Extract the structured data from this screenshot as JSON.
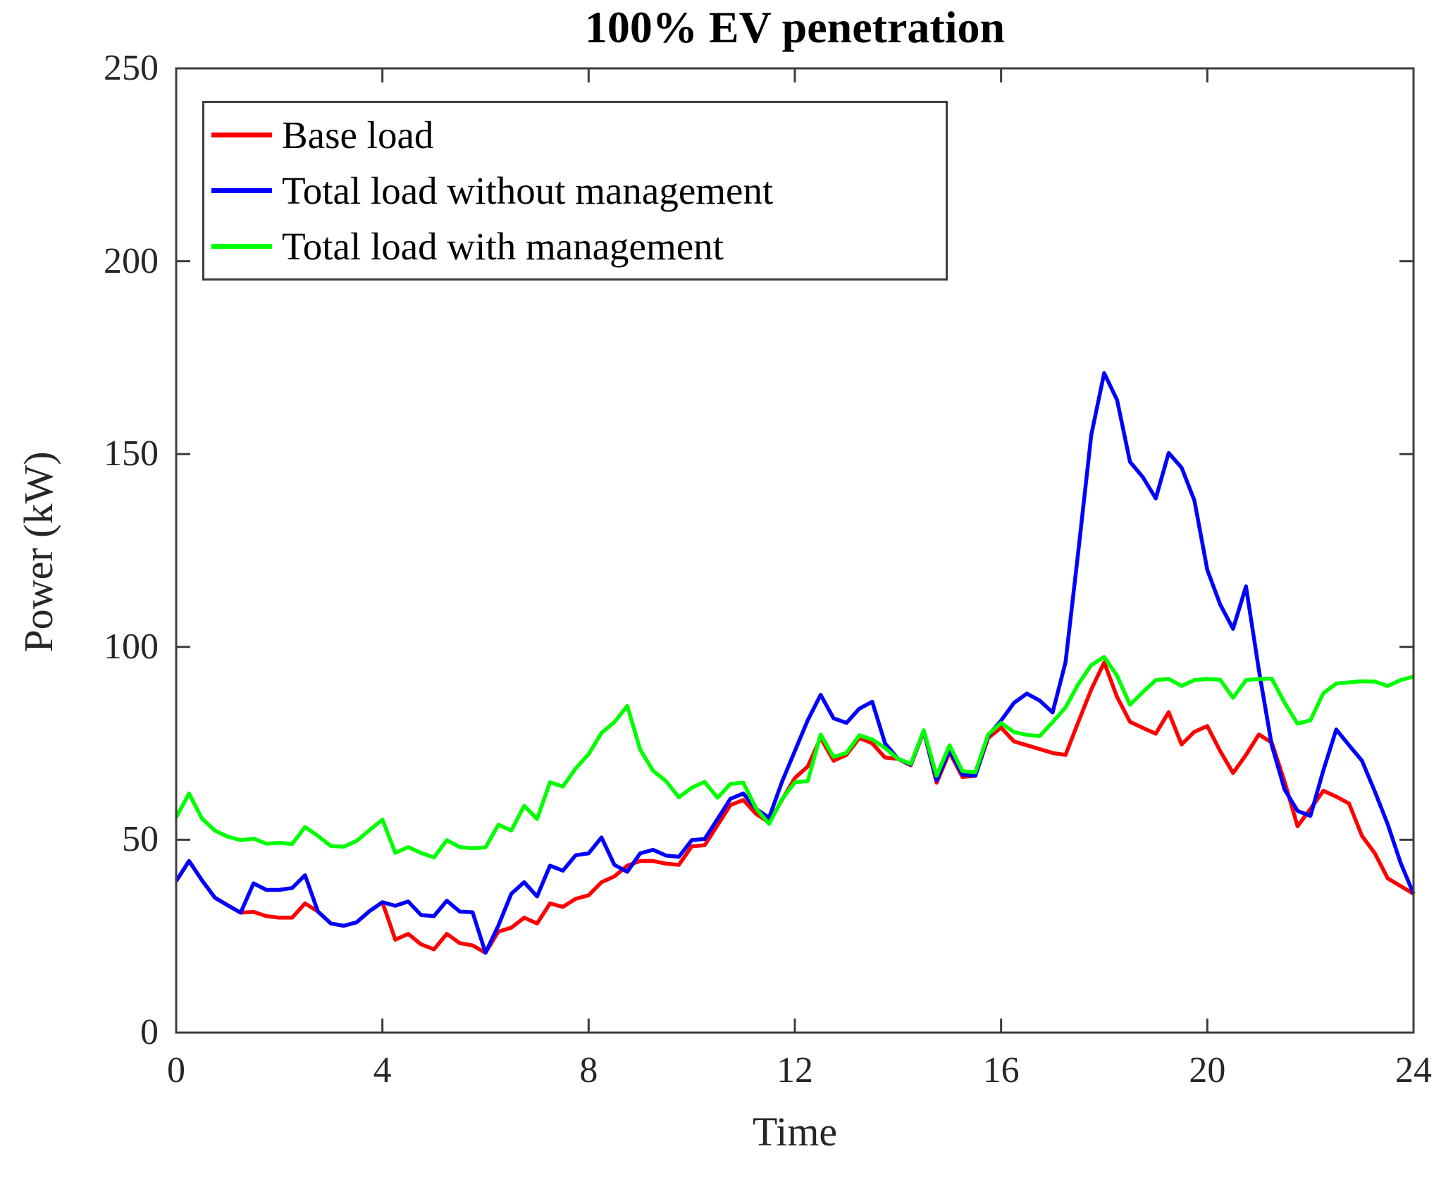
{
  "figure": {
    "title": "100% EV penetration",
    "xlabel": "Time",
    "ylabel": "Power (kW)"
  },
  "axes": {
    "x": {
      "min": 0,
      "max": 24,
      "ticks": [
        "0",
        "4",
        "8",
        "12",
        "16",
        "20",
        "24"
      ],
      "tick_values": [
        0,
        4,
        8,
        12,
        16,
        20,
        24
      ]
    },
    "y": {
      "min": 0,
      "max": 250,
      "ticks": [
        "0",
        "50",
        "100",
        "150",
        "200",
        "250"
      ],
      "tick_values": [
        0,
        50,
        100,
        150,
        200,
        250
      ]
    },
    "axis_color": "#3c3c3c",
    "grid": false
  },
  "legend": {
    "position": "northwest-inside"
  },
  "chart_data": {
    "type": "line",
    "title": "100% EV penetration",
    "xlabel": "Time",
    "ylabel": "Power (kW)",
    "xlim": [
      0,
      24
    ],
    "ylim": [
      0,
      250
    ],
    "x_start": 0,
    "x_step": 0.25,
    "series": [
      {
        "name": "Base load",
        "color": "#ff0000",
        "values": [
          39.3,
          44.5,
          39.5,
          35.0,
          33.0,
          31.1,
          31.3,
          30.2,
          29.8,
          29.8,
          33.5,
          31.4,
          28.3,
          27.7,
          28.6,
          31.5,
          33.8,
          24.1,
          25.6,
          22.9,
          21.6,
          25.6,
          23.2,
          22.6,
          20.7,
          26.2,
          27.2,
          29.8,
          28.3,
          33.5,
          32.6,
          34.7,
          35.6,
          39.0,
          40.5,
          43.3,
          44.5,
          44.5,
          43.8,
          43.5,
          48.3,
          48.6,
          53.8,
          59.0,
          60.3,
          56.7,
          54.5,
          60.3,
          66.0,
          69.0,
          76.4,
          70.5,
          72.0,
          76.4,
          75.0,
          71.3,
          71.0,
          69.3,
          78.1,
          64.8,
          72.7,
          66.3,
          66.6,
          76.4,
          79.1,
          75.5,
          74.5,
          73.5,
          72.5,
          72.0,
          80.6,
          89.0,
          96.0,
          87.0,
          80.6,
          79.0,
          77.5,
          83.1,
          74.7,
          78.0,
          79.5,
          73.0,
          67.3,
          72.0,
          77.3,
          75.2,
          65.0,
          53.5,
          58.0,
          62.7,
          61.2,
          59.4,
          51.0,
          46.5,
          40.0,
          38.0,
          36.0
        ]
      },
      {
        "name": "Total load without management",
        "color": "#0000ff",
        "values": [
          39.3,
          44.5,
          39.5,
          35.0,
          33.0,
          31.1,
          38.7,
          37.0,
          37.0,
          37.5,
          40.8,
          31.4,
          28.3,
          27.7,
          28.6,
          31.5,
          33.8,
          32.9,
          34.0,
          30.5,
          30.2,
          34.2,
          31.4,
          31.2,
          20.7,
          27.8,
          36.0,
          39.0,
          35.3,
          43.3,
          42.0,
          46.0,
          46.5,
          50.6,
          43.5,
          41.7,
          46.5,
          47.4,
          45.9,
          45.6,
          49.9,
          50.2,
          55.4,
          60.6,
          62.0,
          58.0,
          55.7,
          65.0,
          73.0,
          81.0,
          87.6,
          81.5,
          80.3,
          84.0,
          85.8,
          75.0,
          71.0,
          69.5,
          78.3,
          65.4,
          73.3,
          66.9,
          66.6,
          77.0,
          80.9,
          85.5,
          87.9,
          86.1,
          83.0,
          96.0,
          125.0,
          155.0,
          171.0,
          164.0,
          148.0,
          144.0,
          138.5,
          150.3,
          146.5,
          138.0,
          120.0,
          111.0,
          104.7,
          115.7,
          94.0,
          74.5,
          63.0,
          57.5,
          56.2,
          68.0,
          78.6,
          74.5,
          70.5,
          62.5,
          54.0,
          44.0,
          36.0
        ]
      },
      {
        "name": "Total load with management",
        "color": "#00ff00",
        "values": [
          55.8,
          62.0,
          55.5,
          52.4,
          50.8,
          49.9,
          50.3,
          49.0,
          49.2,
          48.9,
          53.3,
          51.0,
          48.4,
          48.2,
          49.7,
          52.5,
          55.2,
          46.6,
          48.1,
          46.6,
          45.4,
          49.9,
          48.1,
          47.8,
          48.0,
          53.9,
          52.4,
          58.8,
          55.4,
          64.9,
          63.8,
          68.5,
          72.2,
          77.7,
          80.5,
          84.7,
          73.4,
          67.9,
          65.2,
          61.0,
          63.5,
          65.0,
          60.9,
          64.5,
          64.8,
          58.1,
          54.1,
          60.5,
          64.9,
          65.2,
          77.3,
          71.5,
          72.5,
          77.1,
          76.0,
          73.8,
          71.0,
          69.7,
          78.4,
          66.6,
          74.5,
          67.8,
          67.5,
          77.3,
          80.3,
          77.9,
          77.2,
          76.9,
          80.5,
          84.3,
          90.4,
          95.3,
          97.4,
          92.5,
          85.0,
          88.3,
          91.4,
          91.7,
          89.9,
          91.4,
          91.7,
          91.5,
          86.8,
          91.4,
          91.7,
          91.8,
          85.5,
          80.1,
          81.0,
          88.0,
          90.5,
          90.8,
          91.1,
          91.0,
          89.9,
          91.4,
          92.3
        ]
      }
    ],
    "legend_position": "northwest-inside",
    "grid": false
  }
}
